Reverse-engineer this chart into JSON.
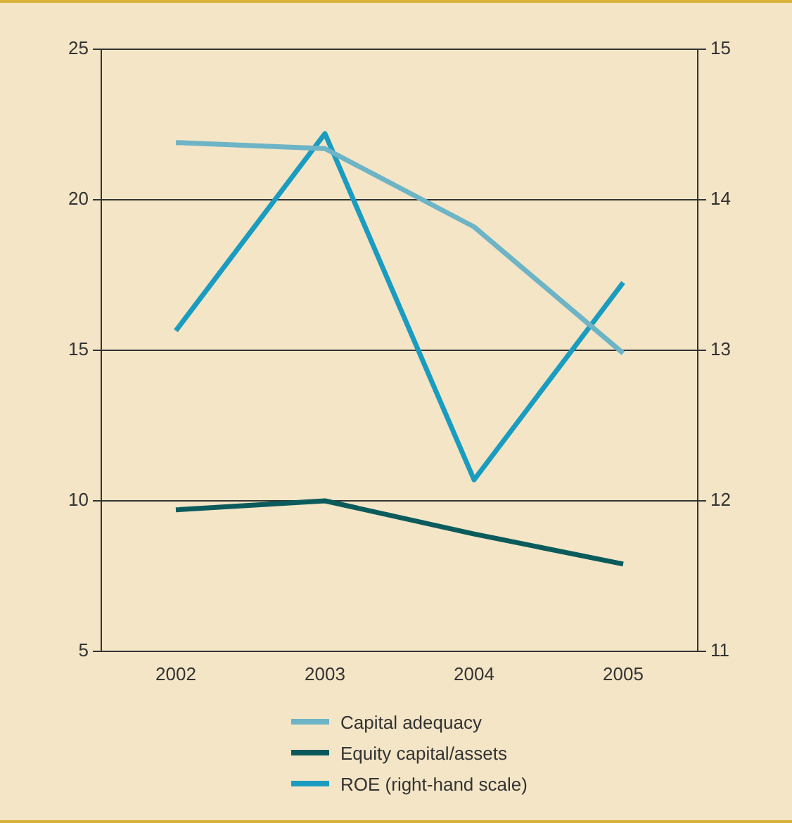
{
  "chart_data": {
    "type": "line",
    "categories": [
      "2002",
      "2003",
      "2004",
      "2005"
    ],
    "series": [
      {
        "name": "Capital adequacy",
        "color": "#6cb4c6",
        "values": [
          21.9,
          21.7,
          19.1,
          14.9
        ]
      },
      {
        "name": "Equity capital/assets",
        "color": "#0b5b5c",
        "values": [
          9.7,
          10.0,
          8.9,
          7.9
        ]
      },
      {
        "name": "ROE (right-hand scale)",
        "color": "#1a9cc0",
        "values": [
          13.13,
          14.44,
          12.14,
          13.45
        ],
        "axis": "y2"
      }
    ],
    "ylim": [
      5,
      25
    ],
    "yticks": [
      5,
      10,
      15,
      20,
      25
    ],
    "y2lim": [
      11,
      15
    ],
    "y2ticks": [
      11,
      12,
      13,
      14,
      15
    ],
    "grid": "y",
    "legend": "bottom",
    "marker": "none",
    "line_style": "solid"
  }
}
